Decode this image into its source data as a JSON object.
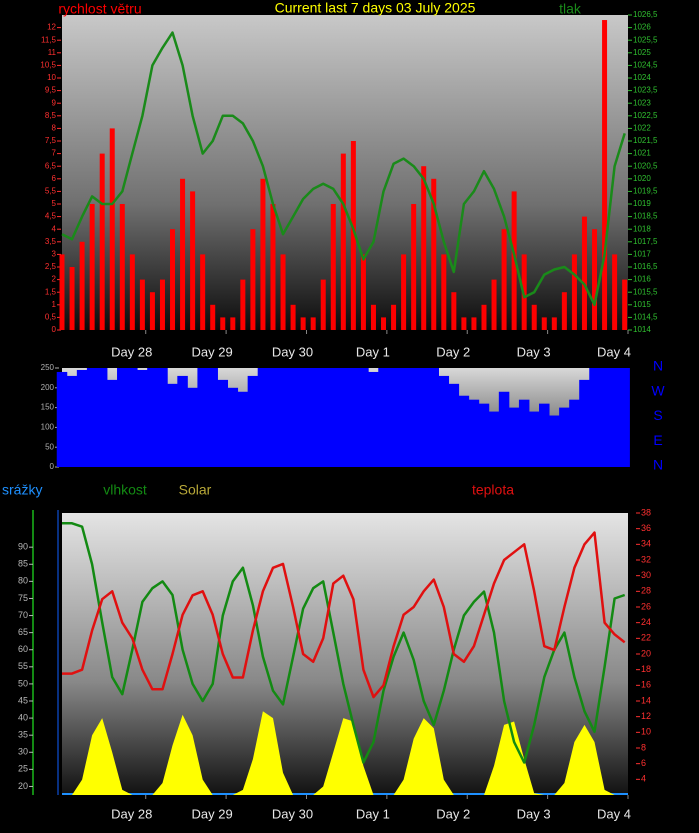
{
  "chart_data": [
    {
      "type": "line",
      "title": "Current last 7 days 03 July 2025",
      "x": [
        0,
        3,
        6,
        9,
        12,
        15,
        18,
        21,
        24,
        27,
        30,
        33,
        36,
        39,
        42,
        45,
        48,
        51,
        54,
        57,
        60,
        63,
        66,
        69,
        72,
        75,
        78,
        81,
        84,
        87,
        90,
        93,
        96,
        99,
        102,
        105,
        108,
        111,
        114,
        117,
        120,
        123,
        126,
        129,
        132,
        135,
        138,
        141,
        144,
        147,
        150,
        153,
        156,
        159,
        162,
        165,
        168
      ],
      "xlim": [
        0,
        169
      ],
      "xticks": [
        {
          "value": 25,
          "label": "Day 28"
        },
        {
          "value": 49,
          "label": "Day 29"
        },
        {
          "value": 73,
          "label": "Day 30"
        },
        {
          "value": 97,
          "label": "Day 1"
        },
        {
          "value": 121,
          "label": "Day 2"
        },
        {
          "value": 145,
          "label": "Day 3"
        },
        {
          "value": 169,
          "label": "Day 4"
        }
      ],
      "ylim": [
        0,
        12.5
      ],
      "yticks": [
        0,
        {
          "value": 0.5,
          "label": "0,5"
        },
        1,
        {
          "value": 1.5,
          "label": "1,5"
        },
        2,
        {
          "value": 2.5,
          "label": "2,5"
        },
        3,
        {
          "value": 3.5,
          "label": "3,5"
        },
        4,
        {
          "value": 4.5,
          "label": "4,5"
        },
        5,
        {
          "value": 5.5,
          "label": "5,5"
        },
        6,
        {
          "value": 6.5,
          "label": "6,5"
        },
        7,
        {
          "value": 7.5,
          "label": "7,5"
        },
        8,
        {
          "value": 8.5,
          "label": "8,5"
        },
        9,
        {
          "value": 9.5,
          "label": "9,5"
        },
        10,
        {
          "value": 10.5,
          "label": "10,5"
        },
        11,
        {
          "value": 11.5,
          "label": "11,5"
        },
        12
      ],
      "y2lim": [
        1014,
        1026.5
      ],
      "y2ticks": [
        1014,
        {
          "value": 1014.5,
          "label": "1014,5"
        },
        1015,
        {
          "value": 1015.5,
          "label": "1015,5"
        },
        1016,
        {
          "value": 1016.5,
          "label": "1016,5"
        },
        1017,
        {
          "value": 1017.5,
          "label": "1017,5"
        },
        1018,
        {
          "value": 1018.5,
          "label": "1018,5"
        },
        1019,
        {
          "value": 1019.5,
          "label": "1019,5"
        },
        1020,
        {
          "value": 1020.5,
          "label": "1020,5"
        },
        1021,
        {
          "value": 1021.5,
          "label": "1021,5"
        },
        1022,
        {
          "value": 1022.5,
          "label": "1022,5"
        },
        1023,
        {
          "value": 1023.5,
          "label": "1023,5"
        },
        1024,
        {
          "value": 1024.5,
          "label": "1024,5"
        },
        1025,
        {
          "value": 1025.5,
          "label": "1025,5"
        },
        1026,
        {
          "value": 1026.5,
          "label": "1026,5"
        }
      ],
      "series": [
        {
          "name": "rychlost větru",
          "color": "#ff0000",
          "type": "bar",
          "values": [
            3,
            2.5,
            3.5,
            5,
            7,
            8,
            5,
            3,
            2,
            1.5,
            2,
            4,
            6,
            5.5,
            3,
            1,
            0.5,
            0.5,
            2,
            4,
            6,
            5,
            3,
            1,
            0.5,
            0.5,
            2,
            5,
            7,
            7.5,
            3,
            1,
            0.5,
            1,
            3,
            5,
            6.5,
            6,
            3,
            1.5,
            0.5,
            0.5,
            1,
            2,
            4,
            5.5,
            3,
            1,
            0.5,
            0.5,
            1.5,
            3,
            4.5,
            4,
            12.3,
            3,
            2
          ]
        },
        {
          "name": "tlak",
          "color": "#1a8a1a",
          "type": "line",
          "axis": "y2",
          "values": [
            1017.8,
            1017.6,
            1018.5,
            1019.3,
            1019,
            1019,
            1019.5,
            1021,
            1022.5,
            1024.5,
            1025.2,
            1025.8,
            1024.5,
            1022.5,
            1021,
            1021.5,
            1022.5,
            1022.5,
            1022.2,
            1021.5,
            1020.5,
            1019,
            1017.8,
            1018.5,
            1019.2,
            1019.6,
            1019.8,
            1019.6,
            1019,
            1018,
            1016.8,
            1017.5,
            1019.5,
            1020.6,
            1020.8,
            1020.5,
            1020,
            1019,
            1017.5,
            1016.3,
            1019,
            1019.5,
            1020.3,
            1019.6,
            1018.5,
            1017,
            1015.3,
            1015.5,
            1016.2,
            1016.4,
            1016.5,
            1016.2,
            1015.8,
            1015,
            1017,
            1020.5,
            1021.8
          ]
        }
      ]
    },
    {
      "type": "bar",
      "x": [
        0,
        3,
        6,
        9,
        12,
        15,
        18,
        21,
        24,
        27,
        30,
        33,
        36,
        39,
        42,
        45,
        48,
        51,
        54,
        57,
        60,
        63,
        66,
        69,
        72,
        75,
        78,
        81,
        84,
        87,
        90,
        93,
        96,
        99,
        102,
        105,
        108,
        111,
        114,
        117,
        120,
        123,
        126,
        129,
        132,
        135,
        138,
        141,
        144,
        147,
        150,
        153,
        156,
        159,
        162,
        165,
        168
      ],
      "xlim": [
        0,
        169
      ],
      "ylim": [
        0,
        250
      ],
      "yticks": [
        0,
        50,
        100,
        150,
        200,
        250
      ],
      "direction_labels": [
        "N",
        "W",
        "S",
        "E",
        "N"
      ],
      "series": [
        {
          "color": "#0000ff",
          "type": "bar",
          "values": [
            240,
            230,
            245,
            250,
            250,
            220,
            250,
            250,
            245,
            250,
            250,
            210,
            230,
            200,
            250,
            250,
            220,
            200,
            190,
            230,
            250,
            250,
            250,
            250,
            250,
            250,
            250,
            250,
            250,
            250,
            250,
            240,
            250,
            250,
            250,
            250,
            250,
            250,
            230,
            210,
            180,
            170,
            160,
            140,
            190,
            150,
            170,
            140,
            160,
            130,
            150,
            170,
            220,
            250,
            250,
            250,
            250
          ]
        }
      ]
    },
    {
      "type": "line",
      "y3_label": "srážky",
      "x": [
        0,
        3,
        6,
        9,
        12,
        15,
        18,
        21,
        24,
        27,
        30,
        33,
        36,
        39,
        42,
        45,
        48,
        51,
        54,
        57,
        60,
        63,
        66,
        69,
        72,
        75,
        78,
        81,
        84,
        87,
        90,
        93,
        96,
        99,
        102,
        105,
        108,
        111,
        114,
        117,
        120,
        123,
        126,
        129,
        132,
        135,
        138,
        141,
        144,
        147,
        150,
        153,
        156,
        159,
        162,
        165,
        168
      ],
      "xlim": [
        0,
        169
      ],
      "xticks": [
        {
          "value": 25,
          "label": "Day 28"
        },
        {
          "value": 49,
          "label": "Day 29"
        },
        {
          "value": 73,
          "label": "Day 30"
        },
        {
          "value": 97,
          "label": "Day 1"
        },
        {
          "value": 121,
          "label": "Day 2"
        },
        {
          "value": 145,
          "label": "Day 3"
        },
        {
          "value": 169,
          "label": "Day 4"
        }
      ],
      "ylim": [
        17.5,
        100
      ],
      "yticks": [
        20,
        25,
        30,
        35,
        40,
        45,
        50,
        55,
        60,
        65,
        70,
        75,
        80,
        85,
        90
      ],
      "y2lim": [
        2,
        38
      ],
      "y2ticks": [
        4,
        6,
        8,
        10,
        12,
        14,
        16,
        18,
        20,
        22,
        24,
        26,
        28,
        30,
        32,
        34,
        36,
        38
      ],
      "series": [
        {
          "name": "Solar",
          "color": "#ffff00",
          "legend_color": "#b8a838",
          "type": "area",
          "values": [
            17.5,
            17.5,
            22,
            35,
            40,
            30,
            19,
            17.5,
            17.5,
            17.5,
            21,
            32,
            41,
            35,
            22,
            17.5,
            17.5,
            17.5,
            19,
            28,
            42,
            40,
            24,
            17.5,
            17.5,
            17.5,
            20,
            30,
            40,
            39,
            26,
            17.5,
            17.5,
            17.5,
            22,
            34,
            40,
            37,
            22,
            17.5,
            17.5,
            17.5,
            17.5,
            26,
            38,
            39,
            28,
            18,
            17.5,
            17.5,
            21,
            33,
            38,
            33,
            19,
            17.5,
            17.5
          ]
        },
        {
          "name": "vlhkost",
          "color": "#138a13",
          "type": "line",
          "values": [
            97,
            97,
            96,
            85,
            68,
            52,
            47,
            60,
            74,
            78,
            80,
            76,
            60,
            50,
            45,
            50,
            70,
            80,
            84,
            73,
            58,
            48,
            44,
            58,
            72,
            78,
            80,
            65,
            50,
            38,
            27,
            33,
            48,
            58,
            65,
            57,
            45,
            38,
            48,
            60,
            70,
            74,
            77,
            65,
            45,
            33,
            27,
            38,
            52,
            60,
            65,
            52,
            42,
            36,
            55,
            75,
            76
          ]
        },
        {
          "name": "teplota",
          "color": "#e01010",
          "type": "line",
          "axis": "y2",
          "values": [
            17.5,
            17.5,
            18,
            23,
            27,
            28,
            24,
            22,
            18,
            15.5,
            15.5,
            20,
            25,
            27.5,
            28,
            25,
            20,
            17,
            17,
            23,
            28,
            31,
            31.5,
            26,
            20,
            19,
            22,
            29,
            30,
            27,
            18,
            14.5,
            16,
            21,
            25,
            26,
            28,
            29.5,
            26,
            20,
            19,
            21,
            25,
            29,
            32,
            33,
            34,
            28,
            21,
            20.5,
            26,
            31,
            34,
            35.5,
            24,
            22.5,
            21.5
          ]
        }
      ]
    }
  ]
}
